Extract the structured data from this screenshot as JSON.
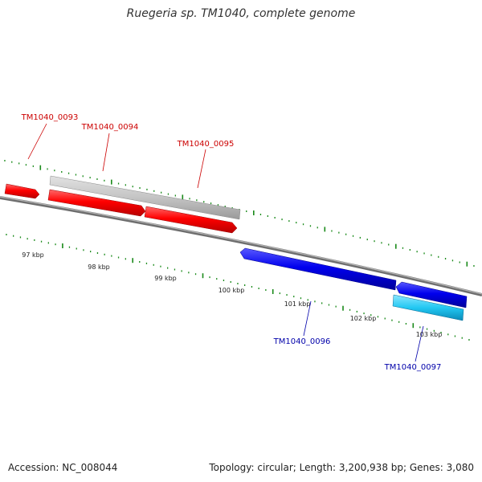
{
  "title": "Ruegeria sp. TM1040, complete genome",
  "footer": {
    "accession": "Accession: NC_008044",
    "summary": "Topology: circular; Length: 3,200,938 bp; Genes: 3,080"
  },
  "colors": {
    "forward_gene": "#ff0000",
    "reverse_gene": "#0000ee",
    "forward_label": "#cc0000",
    "reverse_label": "#0000aa",
    "grey_feature": "#c4c4c4",
    "cyan_feature": "#22c8f2",
    "tick": "#1a8a1a",
    "backbone": "#808080"
  },
  "scale": {
    "ticks": [
      {
        "label": "97 kbp"
      },
      {
        "label": "98 kbp"
      },
      {
        "label": "99 kbp"
      },
      {
        "label": "100 kbp"
      },
      {
        "label": "101 kbp"
      },
      {
        "label": "102 kbp"
      },
      {
        "label": "103 kbp"
      }
    ]
  },
  "genes": [
    {
      "name": "TM1040_0093",
      "strand": "forward"
    },
    {
      "name": "TM1040_0094",
      "strand": "forward"
    },
    {
      "name": "TM1040_0095",
      "strand": "forward"
    },
    {
      "name": "TM1040_0096",
      "strand": "reverse"
    },
    {
      "name": "TM1040_0097",
      "strand": "reverse"
    }
  ]
}
